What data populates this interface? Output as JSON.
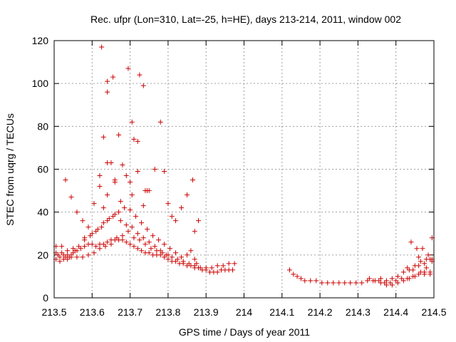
{
  "chart_data": {
    "type": "scatter",
    "title": "Rec. ufpr (Lon=310, Lat=-25, h=HE), days 213-214, 2011, window 002",
    "xlabel": "GPS time / Days of year 2011",
    "ylabel": "STEC from uqrg / TECUs",
    "xlim": [
      213.5,
      214.5
    ],
    "ylim": [
      0,
      120
    ],
    "xticks": [
      "213.5",
      "213.6",
      "213.7",
      "213.8",
      "213.9",
      "214",
      "214.1",
      "214.2",
      "214.3",
      "214.4",
      "214.5"
    ],
    "yticks": [
      "0",
      "20",
      "40",
      "60",
      "80",
      "100",
      "120"
    ],
    "grid": true,
    "marker": "+",
    "color": "#cc0000",
    "series": [
      {
        "points": [
          [
            213.505,
            21
          ],
          [
            213.51,
            20
          ],
          [
            213.515,
            19
          ],
          [
            213.52,
            21
          ],
          [
            213.525,
            20
          ],
          [
            213.53,
            19
          ],
          [
            213.535,
            20
          ],
          [
            213.54,
            19
          ],
          [
            213.545,
            20
          ],
          [
            213.55,
            21
          ],
          [
            213.555,
            22
          ],
          [
            213.56,
            22
          ],
          [
            213.57,
            23
          ],
          [
            213.58,
            24
          ],
          [
            213.59,
            25
          ],
          [
            213.6,
            25
          ],
          [
            213.61,
            24
          ],
          [
            213.62,
            25
          ],
          [
            213.63,
            25
          ],
          [
            213.64,
            26
          ],
          [
            213.65,
            27
          ],
          [
            213.66,
            27
          ],
          [
            213.67,
            27
          ],
          [
            213.68,
            27
          ],
          [
            213.69,
            26
          ],
          [
            213.7,
            25
          ],
          [
            213.71,
            24
          ],
          [
            213.72,
            23
          ],
          [
            213.73,
            22
          ],
          [
            213.74,
            21
          ],
          [
            213.75,
            21
          ],
          [
            213.76,
            20
          ],
          [
            213.77,
            20
          ],
          [
            213.78,
            20
          ],
          [
            213.79,
            19
          ],
          [
            213.8,
            18
          ],
          [
            213.81,
            17
          ],
          [
            213.82,
            17
          ],
          [
            213.83,
            16
          ],
          [
            213.84,
            16
          ],
          [
            213.85,
            15
          ],
          [
            213.86,
            15
          ],
          [
            213.87,
            14
          ],
          [
            213.88,
            14
          ],
          [
            213.89,
            13
          ],
          [
            213.9,
            13
          ],
          [
            213.91,
            12
          ],
          [
            213.92,
            12
          ],
          [
            213.93,
            12
          ],
          [
            213.94,
            13
          ],
          [
            213.95,
            13
          ],
          [
            213.96,
            13
          ],
          [
            213.97,
            13
          ],
          [
            213.505,
            18
          ],
          [
            213.515,
            17
          ],
          [
            213.525,
            18
          ],
          [
            213.535,
            18
          ],
          [
            213.545,
            19
          ],
          [
            213.56,
            19
          ],
          [
            213.575,
            19
          ],
          [
            213.59,
            20
          ],
          [
            213.605,
            21
          ],
          [
            213.62,
            23
          ],
          [
            213.635,
            24
          ],
          [
            213.65,
            25
          ],
          [
            213.665,
            28
          ],
          [
            213.68,
            29
          ],
          [
            213.695,
            31
          ],
          [
            213.71,
            28
          ],
          [
            213.725,
            27
          ],
          [
            213.74,
            25
          ],
          [
            213.755,
            23
          ],
          [
            213.77,
            22
          ],
          [
            213.785,
            21
          ],
          [
            213.8,
            20
          ],
          [
            213.505,
            24
          ],
          [
            213.52,
            24
          ],
          [
            213.535,
            22
          ],
          [
            213.55,
            23
          ],
          [
            213.565,
            24
          ],
          [
            213.58,
            27
          ],
          [
            213.595,
            29
          ],
          [
            213.61,
            31
          ],
          [
            213.625,
            33
          ],
          [
            213.64,
            36
          ],
          [
            213.655,
            38
          ],
          [
            213.67,
            40
          ],
          [
            213.685,
            42
          ],
          [
            213.7,
            41
          ],
          [
            213.715,
            38
          ],
          [
            213.73,
            35
          ],
          [
            213.745,
            32
          ],
          [
            213.76,
            29
          ],
          [
            213.775,
            27
          ],
          [
            213.79,
            25
          ],
          [
            213.805,
            23
          ],
          [
            213.82,
            21
          ],
          [
            213.835,
            19
          ],
          [
            213.53,
            55
          ],
          [
            213.545,
            47
          ],
          [
            213.56,
            40
          ],
          [
            213.575,
            36
          ],
          [
            213.59,
            33
          ],
          [
            213.605,
            44
          ],
          [
            213.62,
            57
          ],
          [
            213.63,
            42
          ],
          [
            213.64,
            48
          ],
          [
            213.65,
            63
          ],
          [
            213.66,
            55
          ],
          [
            213.675,
            45
          ],
          [
            213.69,
            57
          ],
          [
            213.705,
            48
          ],
          [
            213.72,
            59
          ],
          [
            213.735,
            43
          ],
          [
            213.75,
            50
          ],
          [
            213.765,
            60
          ],
          [
            213.79,
            59
          ],
          [
            213.8,
            44
          ],
          [
            213.81,
            38
          ],
          [
            213.82,
            36
          ],
          [
            213.835,
            42
          ],
          [
            213.85,
            48
          ],
          [
            213.865,
            55
          ],
          [
            213.88,
            36
          ],
          [
            213.87,
            31
          ],
          [
            213.625,
            117
          ],
          [
            213.64,
            96
          ],
          [
            213.64,
            101
          ],
          [
            213.655,
            103
          ],
          [
            213.695,
            107
          ],
          [
            213.725,
            104
          ],
          [
            213.735,
            99
          ],
          [
            213.705,
            82
          ],
          [
            213.72,
            73
          ],
          [
            213.71,
            74
          ],
          [
            213.78,
            82
          ],
          [
            213.63,
            75
          ],
          [
            213.67,
            76
          ],
          [
            213.64,
            63
          ],
          [
            213.68,
            62
          ],
          [
            213.62,
            52
          ],
          [
            213.7,
            54
          ],
          [
            213.74,
            50
          ],
          [
            213.745,
            50
          ],
          [
            213.66,
            54
          ],
          [
            213.58,
            28
          ],
          [
            213.6,
            30
          ],
          [
            213.615,
            32
          ],
          [
            213.63,
            35
          ],
          [
            213.645,
            37
          ],
          [
            213.66,
            39
          ],
          [
            213.675,
            36
          ],
          [
            213.69,
            34
          ],
          [
            213.705,
            33
          ],
          [
            213.72,
            30
          ],
          [
            213.735,
            28
          ],
          [
            213.75,
            26
          ],
          [
            213.765,
            24
          ],
          [
            213.78,
            22
          ],
          [
            213.795,
            20
          ],
          [
            213.81,
            19
          ],
          [
            213.825,
            18
          ],
          [
            213.84,
            17
          ],
          [
            213.855,
            16
          ],
          [
            213.87,
            15
          ],
          [
            213.885,
            14
          ],
          [
            213.9,
            14
          ],
          [
            213.915,
            14
          ],
          [
            213.93,
            15
          ],
          [
            213.945,
            15
          ],
          [
            213.96,
            16
          ],
          [
            213.975,
            16
          ],
          [
            213.85,
            20
          ],
          [
            213.86,
            22
          ],
          [
            213.87,
            18
          ],
          [
            213.875,
            16
          ],
          [
            214.12,
            13
          ],
          [
            214.13,
            11
          ],
          [
            214.14,
            10
          ],
          [
            214.15,
            9
          ],
          [
            214.16,
            8
          ],
          [
            214.175,
            8
          ],
          [
            214.19,
            8
          ],
          [
            214.205,
            7
          ],
          [
            214.22,
            7
          ],
          [
            214.235,
            7
          ],
          [
            214.25,
            7
          ],
          [
            214.265,
            7
          ],
          [
            214.28,
            7
          ],
          [
            214.295,
            7
          ],
          [
            214.31,
            7
          ],
          [
            214.325,
            8
          ],
          [
            214.34,
            8
          ],
          [
            214.355,
            8
          ],
          [
            214.37,
            7
          ],
          [
            214.385,
            7
          ],
          [
            214.4,
            8
          ],
          [
            214.415,
            9
          ],
          [
            214.43,
            9
          ],
          [
            214.445,
            10
          ],
          [
            214.46,
            11
          ],
          [
            214.475,
            11
          ],
          [
            214.49,
            12
          ],
          [
            214.33,
            9
          ],
          [
            214.345,
            8
          ],
          [
            214.36,
            7
          ],
          [
            214.375,
            6
          ],
          [
            214.39,
            6
          ],
          [
            214.405,
            7
          ],
          [
            214.42,
            8
          ],
          [
            214.435,
            9
          ],
          [
            214.45,
            10
          ],
          [
            214.465,
            12
          ],
          [
            214.48,
            14
          ],
          [
            214.495,
            17
          ],
          [
            214.36,
            9
          ],
          [
            214.375,
            8
          ],
          [
            214.39,
            9
          ],
          [
            214.405,
            10
          ],
          [
            214.42,
            12
          ],
          [
            214.435,
            13
          ],
          [
            214.45,
            15
          ],
          [
            214.465,
            17
          ],
          [
            214.48,
            18
          ],
          [
            214.495,
            18
          ],
          [
            214.44,
            26
          ],
          [
            214.455,
            23
          ],
          [
            214.47,
            23
          ],
          [
            214.485,
            20
          ],
          [
            214.495,
            28
          ],
          [
            214.46,
            19
          ],
          [
            214.475,
            16
          ],
          [
            214.49,
            18
          ],
          [
            214.43,
            14
          ],
          [
            214.445,
            13
          ],
          [
            214.46,
            15
          ],
          [
            214.475,
            12
          ],
          [
            214.49,
            11
          ]
        ]
      }
    ]
  }
}
